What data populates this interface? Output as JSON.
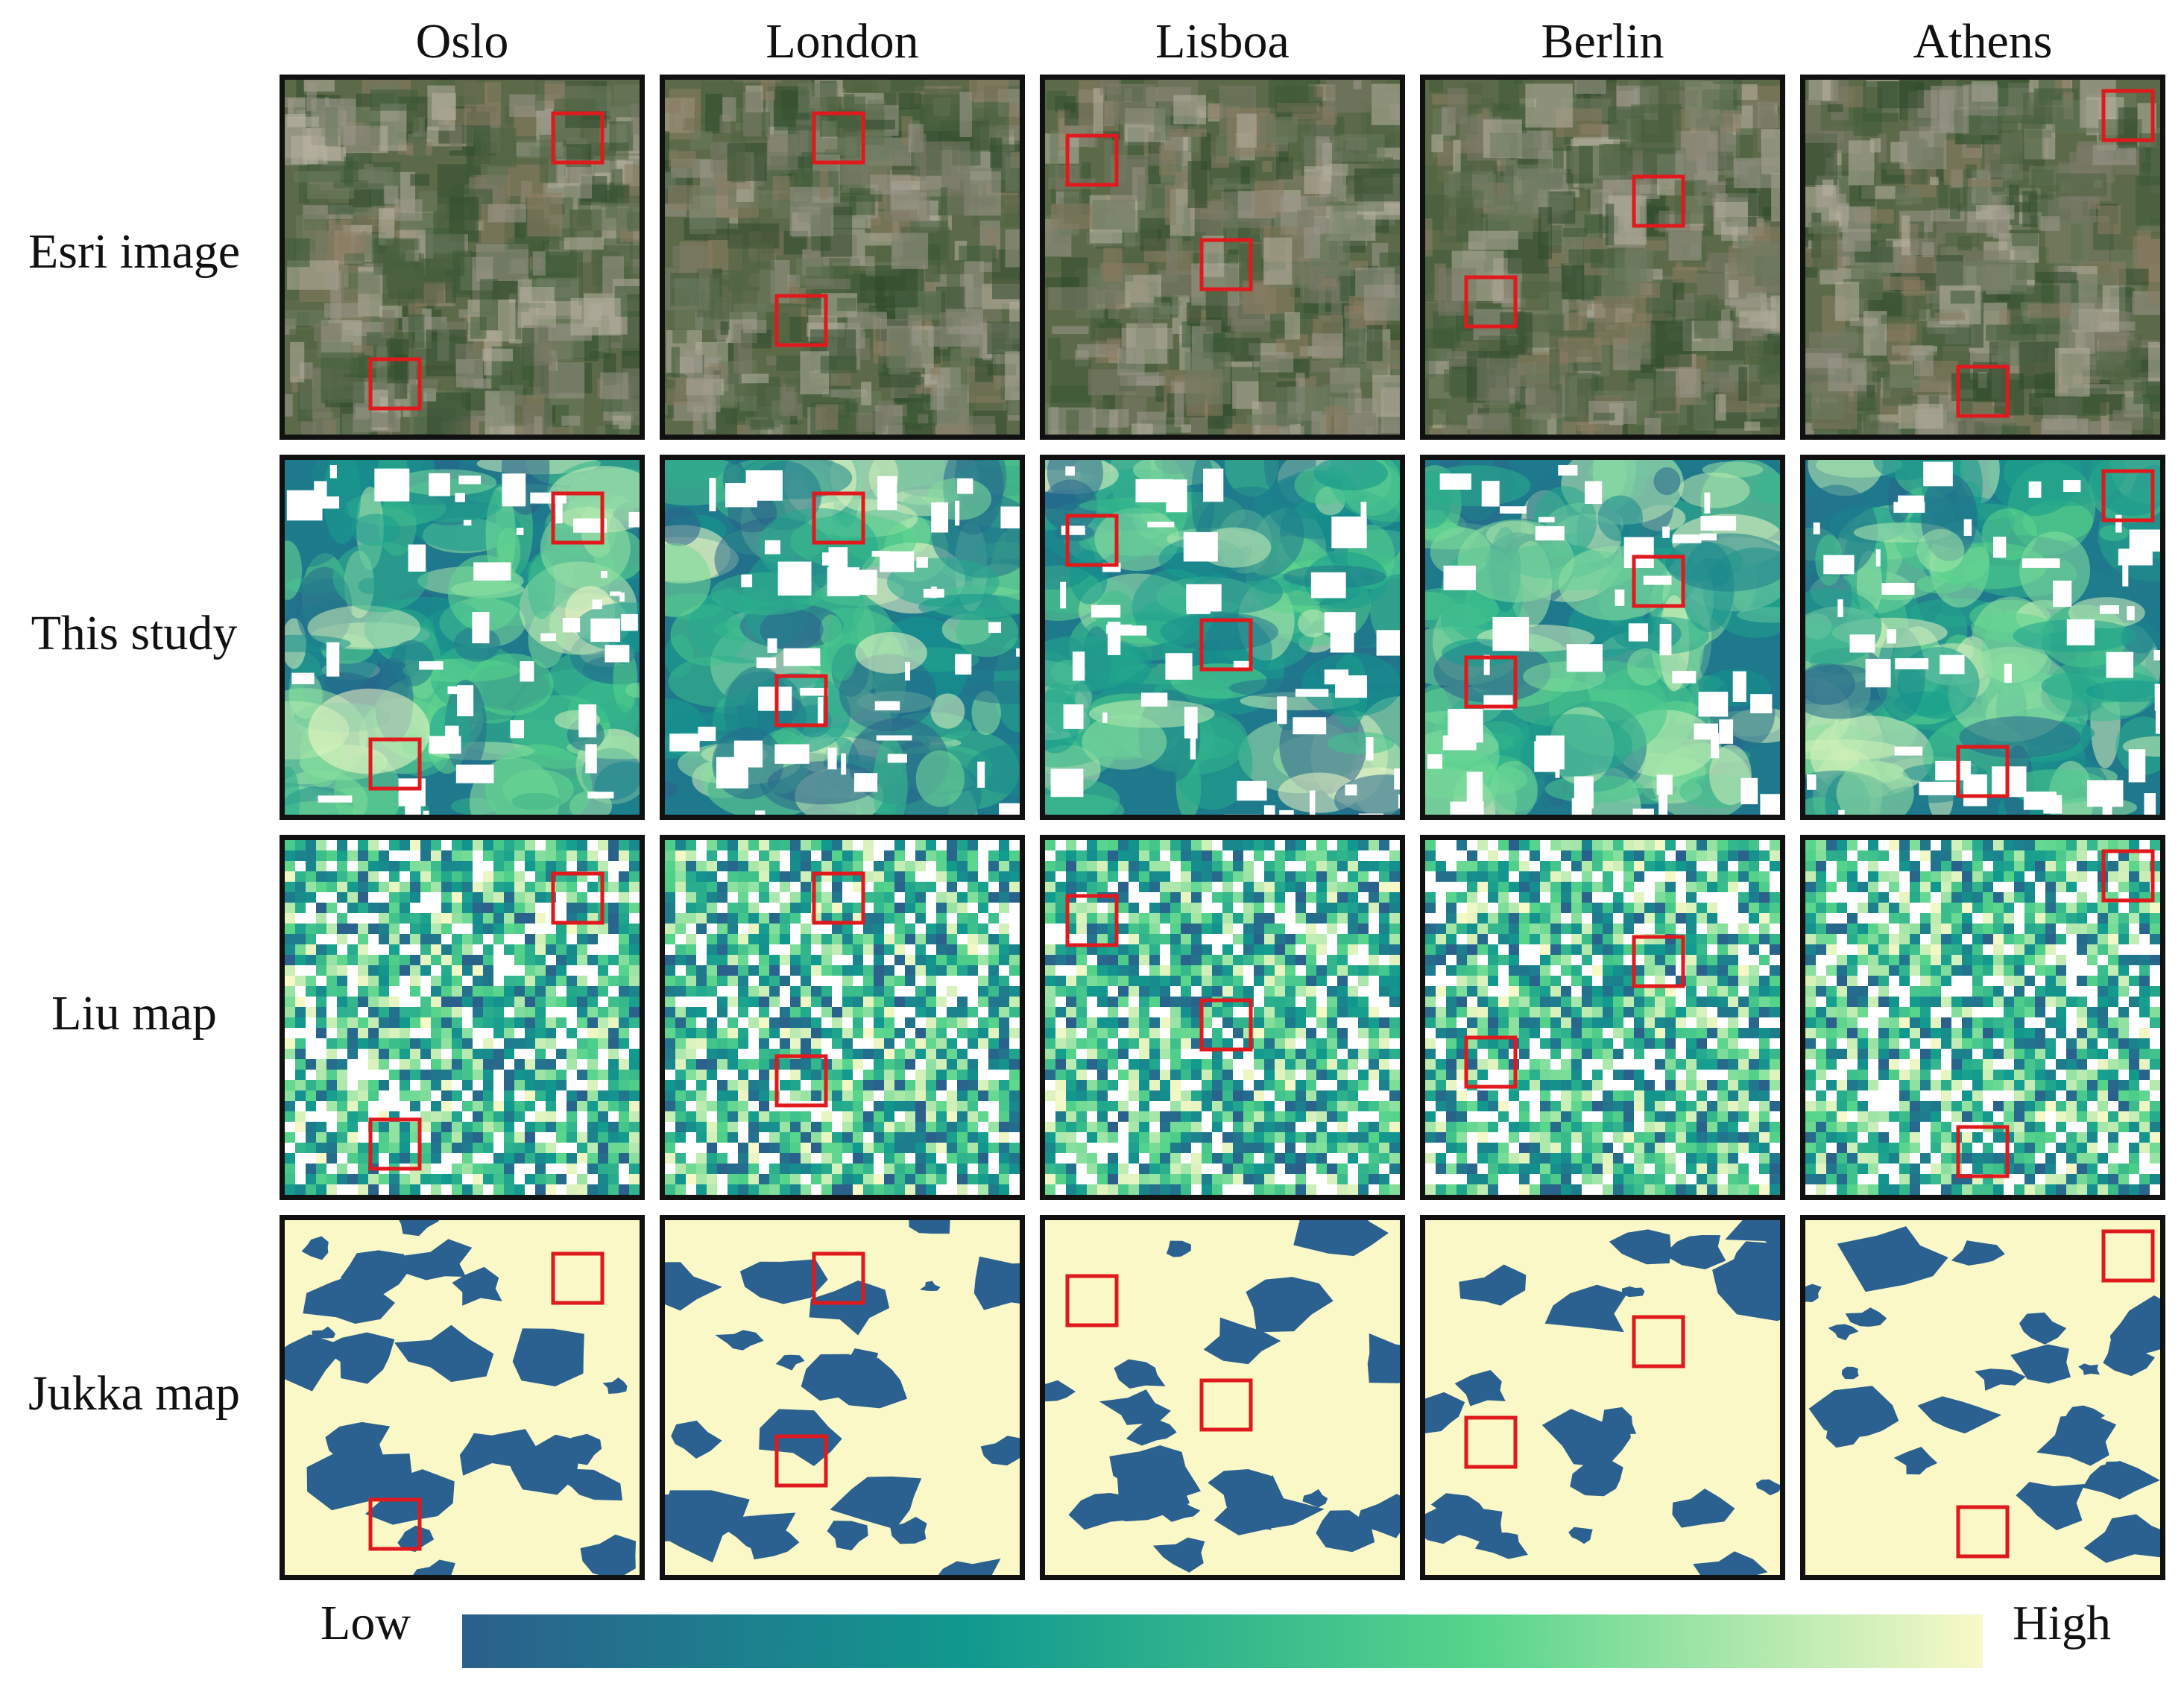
{
  "columns": [
    "Oslo",
    "London",
    "Lisboa",
    "Berlin",
    "Athens"
  ],
  "rows": [
    "Esri image",
    "This study",
    "Liu map",
    "Jukka map"
  ],
  "legend": {
    "low_label": "Low",
    "high_label": "High",
    "colors": [
      "#2b5f8c",
      "#11998e",
      "#56d48b",
      "#f8f9c8"
    ]
  },
  "colors": {
    "highlight_box": "#e0191c",
    "jukka_high": "#fbf8c8",
    "jukka_low": "#2b6190"
  }
}
